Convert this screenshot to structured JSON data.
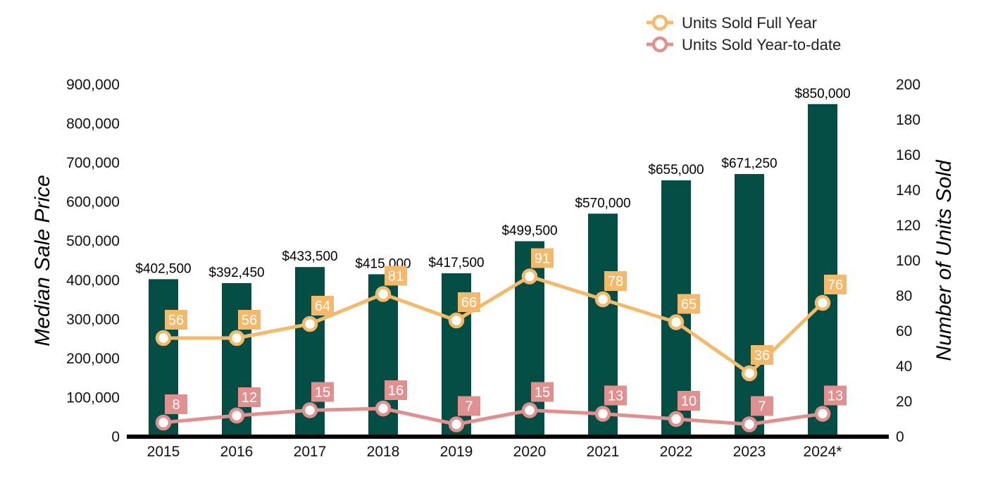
{
  "chart_data": {
    "type": "bar",
    "categories": [
      "2015",
      "2016",
      "2017",
      "2018",
      "2019",
      "2020",
      "2021",
      "2022",
      "2023",
      "2024*"
    ],
    "ylabel": "Median Sale Price",
    "y2label": "Number of Units Sold",
    "ylim": [
      0,
      900000
    ],
    "y2lim": [
      0,
      200
    ],
    "yticks": [
      "0",
      "100,000",
      "200,000",
      "300,000",
      "400,000",
      "500,000",
      "600,000",
      "700,000",
      "800,000",
      "900,000"
    ],
    "y2ticks": [
      "0",
      "20",
      "40",
      "60",
      "80",
      "100",
      "120",
      "140",
      "160",
      "180",
      "200"
    ],
    "bars": {
      "values": [
        402500,
        392450,
        433500,
        415000,
        417500,
        499500,
        570000,
        655000,
        671250,
        850000
      ],
      "labels": [
        "$402,500",
        "$392,450",
        "$433,500",
        "$415,000",
        "$417,500",
        "$499,500",
        "$570,000",
        "$655,000",
        "$671,250",
        "$850,000"
      ],
      "color": "#034d44"
    },
    "series": [
      {
        "name": "Units Sold Full Year",
        "axis": "right",
        "values": [
          56,
          56,
          64,
          81,
          66,
          91,
          78,
          65,
          36,
          76
        ],
        "color": "#f5b96b"
      },
      {
        "name": "Units Sold Year-to-date",
        "axis": "right",
        "values": [
          8,
          12,
          15,
          16,
          7,
          15,
          13,
          10,
          7,
          13
        ],
        "color": "#e0918f"
      }
    ],
    "legend": "top-right",
    "grid": false
  }
}
